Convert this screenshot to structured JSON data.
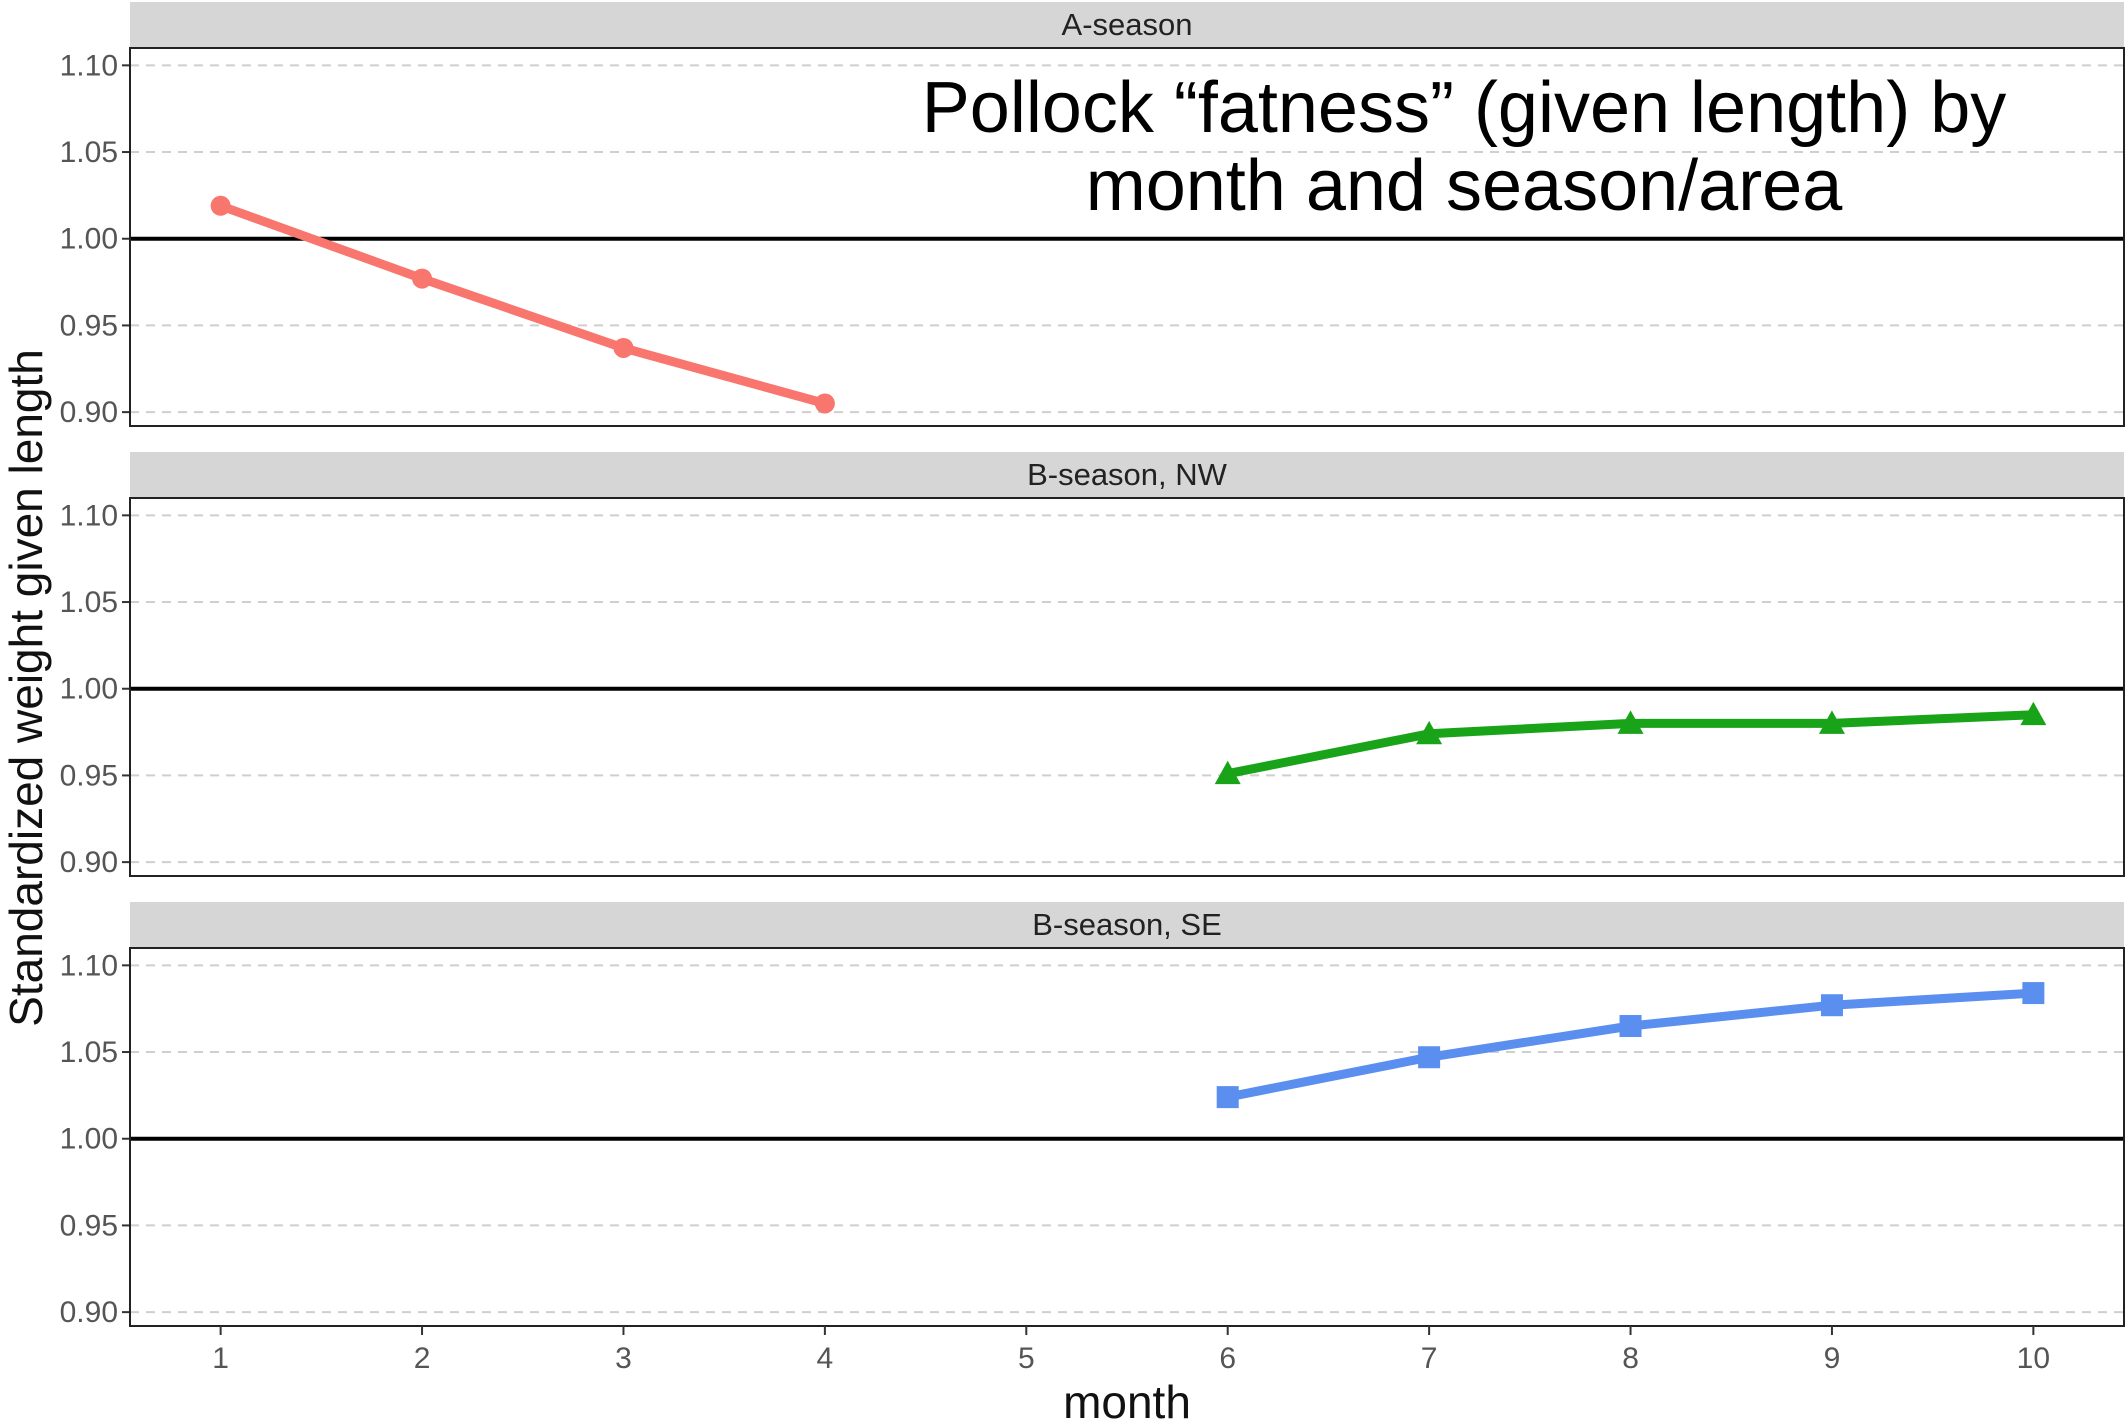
{
  "chart_data": {
    "type": "line",
    "title": "Pollock “fatness” (given length) by month and season/area",
    "title_lines": [
      "Pollock “fatness” (given length) by",
      "month and season/area"
    ],
    "xlabel": "month",
    "ylabel": "Standardized weight given length",
    "x_ticks": [
      1,
      2,
      3,
      4,
      5,
      6,
      7,
      8,
      9,
      10
    ],
    "y_ticks": [
      "0.90",
      "0.95",
      "1.00",
      "1.05",
      "1.10"
    ],
    "ylim": [
      0.892,
      1.11
    ],
    "xlim": [
      0.55,
      10.45
    ],
    "reference_line": 1.0,
    "grid": "horizontal dashed",
    "facets": [
      {
        "label": "A-season",
        "color": "#f8766d",
        "marker": "circle",
        "points": [
          {
            "x": 1,
            "y": 1.019
          },
          {
            "x": 2,
            "y": 0.977
          },
          {
            "x": 3,
            "y": 0.937
          },
          {
            "x": 4,
            "y": 0.905
          }
        ]
      },
      {
        "label": "B-season, NW",
        "color": "#19a319",
        "marker": "triangle",
        "points": [
          {
            "x": 6,
            "y": 0.951
          },
          {
            "x": 7,
            "y": 0.974
          },
          {
            "x": 8,
            "y": 0.98
          },
          {
            "x": 9,
            "y": 0.98
          },
          {
            "x": 10,
            "y": 0.985
          }
        ]
      },
      {
        "label": "B-season, SE",
        "color": "#5a8ff0",
        "marker": "square",
        "points": [
          {
            "x": 6,
            "y": 1.024
          },
          {
            "x": 7,
            "y": 1.047
          },
          {
            "x": 8,
            "y": 1.065
          },
          {
            "x": 9,
            "y": 1.077
          },
          {
            "x": 10,
            "y": 1.084
          }
        ]
      }
    ]
  }
}
